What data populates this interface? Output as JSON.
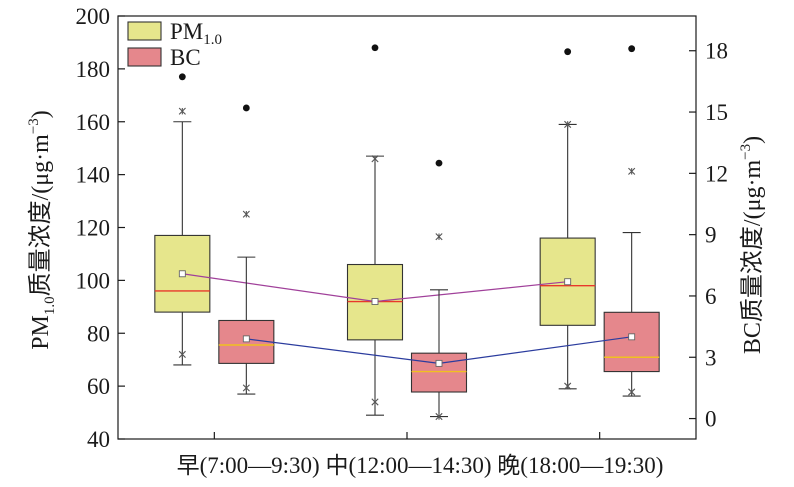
{
  "chart_data": {
    "type": "box",
    "title": "",
    "categories": [
      "早(7:00—9:30)",
      "中(12:00—14:30)",
      "晚(18:00—19:30)"
    ],
    "category_label": "早(7:00—9:30) 中(12:00—14:30) 晚(18:00—19:30)",
    "ylabel_left": "PM1.0质量浓度/(μg·m−3)",
    "ylabel_left_parts": {
      "prefix": "PM",
      "sub": "1.0",
      "rest": "质量浓度/(μg·m",
      "sup": "−3",
      "close": ")"
    },
    "ylabel_right": "BC质量浓度/(μg·m−3)",
    "ylabel_right_parts": {
      "prefix": "BC质量浓度/(μg·m",
      "sup": "−3",
      "close": ")"
    },
    "y_left": {
      "min": 40,
      "max": 200,
      "ticks": [
        40,
        60,
        80,
        100,
        120,
        140,
        160,
        180,
        200
      ]
    },
    "y_right": {
      "min": -1,
      "max": 19.7,
      "ticks": [
        0,
        3,
        6,
        9,
        12,
        15,
        18
      ]
    },
    "legend": {
      "placement": "top-left",
      "entries": [
        {
          "label": "PM",
          "sub": "1.0",
          "color": "#e6e68c"
        },
        {
          "label": "BC",
          "sub": "",
          "color": "#e5878c"
        }
      ]
    },
    "series": [
      {
        "name": "PM1.0",
        "axis": "left",
        "fill": "#e6e68c",
        "median_color": "#e8382b",
        "line_color": "#a0409a",
        "boxes": [
          {
            "whisker_low": 68,
            "q1": 88,
            "median": 96,
            "q3": 117,
            "whisker_high": 160,
            "mean": 102.5,
            "crosses": [
              72,
              164
            ],
            "outliers": [
              177
            ]
          },
          {
            "whisker_low": 49,
            "q1": 77.5,
            "median": 92,
            "q3": 106,
            "whisker_high": 147,
            "mean": 92,
            "crosses": [
              54,
              146
            ],
            "outliers": [
              188
            ]
          },
          {
            "whisker_low": 59,
            "q1": 83,
            "median": 98,
            "q3": 116,
            "whisker_high": 159,
            "mean": 99.5,
            "crosses": [
              60,
              159
            ],
            "outliers": [
              186.5
            ]
          }
        ]
      },
      {
        "name": "BC",
        "axis": "right",
        "fill": "#e5878c",
        "median_color": "#f0c020",
        "line_color": "#2b3c9e",
        "boxes": [
          {
            "whisker_low": 1.2,
            "q1": 2.7,
            "median": 3.6,
            "q3": 4.8,
            "whisker_high": 7.9,
            "mean": 3.9,
            "crosses": [
              1.5,
              10
            ],
            "outliers": [
              15.2
            ]
          },
          {
            "whisker_low": 0.1,
            "q1": 1.3,
            "median": 2.3,
            "q3": 3.2,
            "whisker_high": 6.3,
            "mean": 2.7,
            "crosses": [
              0.1,
              8.9
            ],
            "outliers": [
              12.5
            ]
          },
          {
            "whisker_low": 1.1,
            "q1": 2.3,
            "median": 3.0,
            "q3": 5.2,
            "whisker_high": 9.1,
            "mean": 4.0,
            "crosses": [
              1.3,
              12.1
            ],
            "outliers": [
              18.1
            ]
          }
        ]
      }
    ]
  }
}
